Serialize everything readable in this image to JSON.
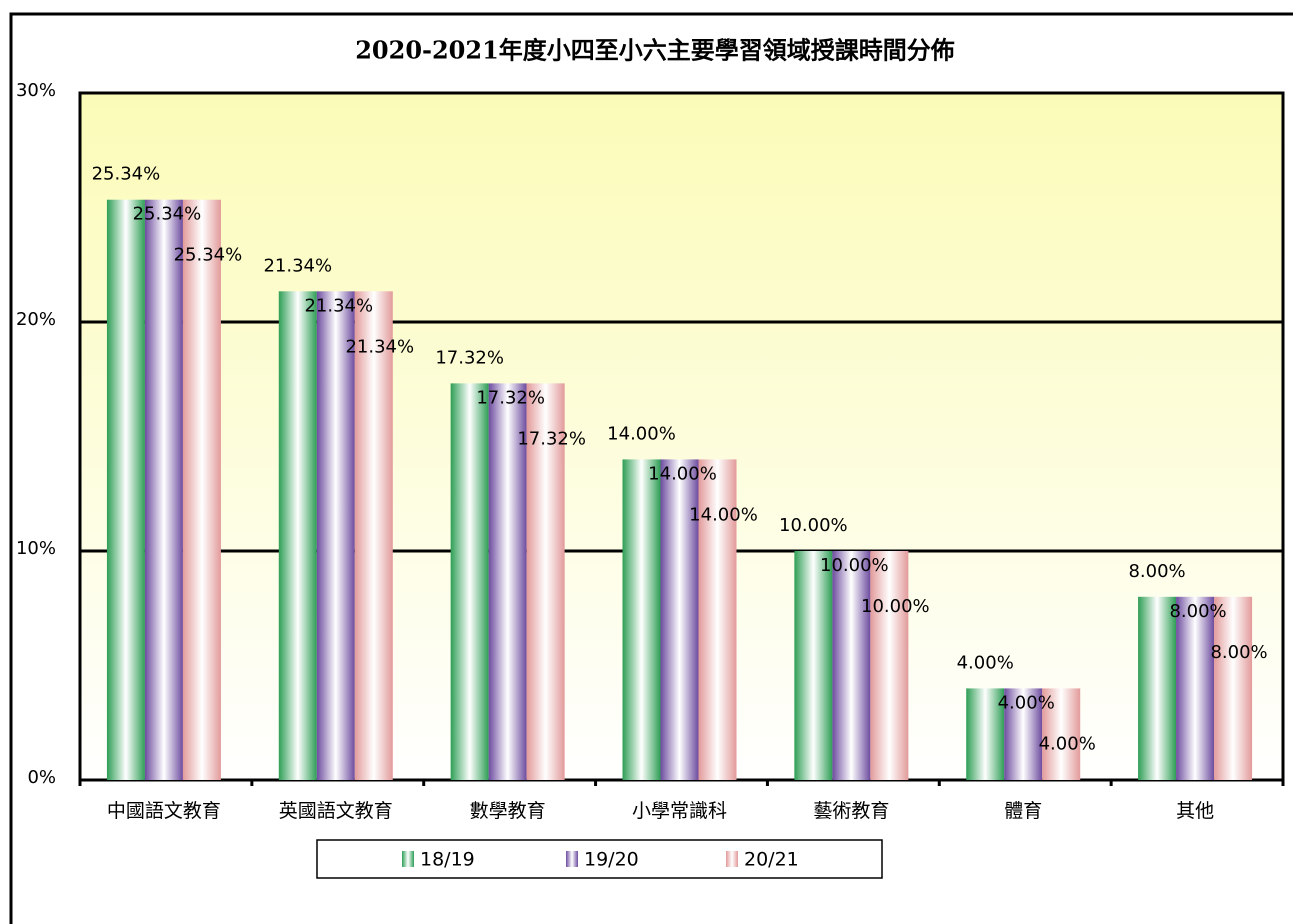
{
  "chart_data": {
    "type": "bar",
    "title": "2020-2021年度小四至小六主要學習領域授課時間分佈",
    "categories": [
      "中國語文教育",
      "英國語文教育",
      "數學教育",
      "小學常識科",
      "藝術教育",
      "體育",
      "其他"
    ],
    "series": [
      {
        "name": "18/19",
        "color": "#2e9e55",
        "values": [
          25.34,
          21.34,
          17.32,
          14.0,
          10.0,
          4.0,
          8.0
        ],
        "value_labels": [
          "25.34%",
          "21.34%",
          "17.32%",
          "14.00%",
          "10.00%",
          "4.00%",
          "8.00%"
        ]
      },
      {
        "name": "19/20",
        "color": "#6d4c9f",
        "values": [
          25.34,
          21.34,
          17.32,
          14.0,
          10.0,
          4.0,
          8.0
        ],
        "value_labels": [
          "25.34%",
          "21.34%",
          "17.32%",
          "14.00%",
          "10.00%",
          "4.00%",
          "8.00%"
        ]
      },
      {
        "name": "20/21",
        "color": "#e29a9a",
        "values": [
          25.34,
          21.34,
          17.32,
          14.0,
          10.0,
          4.0,
          8.0
        ],
        "value_labels": [
          "25.34%",
          "21.34%",
          "17.32%",
          "14.00%",
          "10.00%",
          "4.00%",
          "8.00%"
        ]
      }
    ],
    "ylim": [
      0,
      30
    ],
    "yticks": [
      {
        "value": 0,
        "label": "0%"
      },
      {
        "value": 10,
        "label": "10%"
      },
      {
        "value": 20,
        "label": "20%"
      },
      {
        "value": 30,
        "label": "30%"
      }
    ],
    "grid": true,
    "legend": "bottom"
  }
}
